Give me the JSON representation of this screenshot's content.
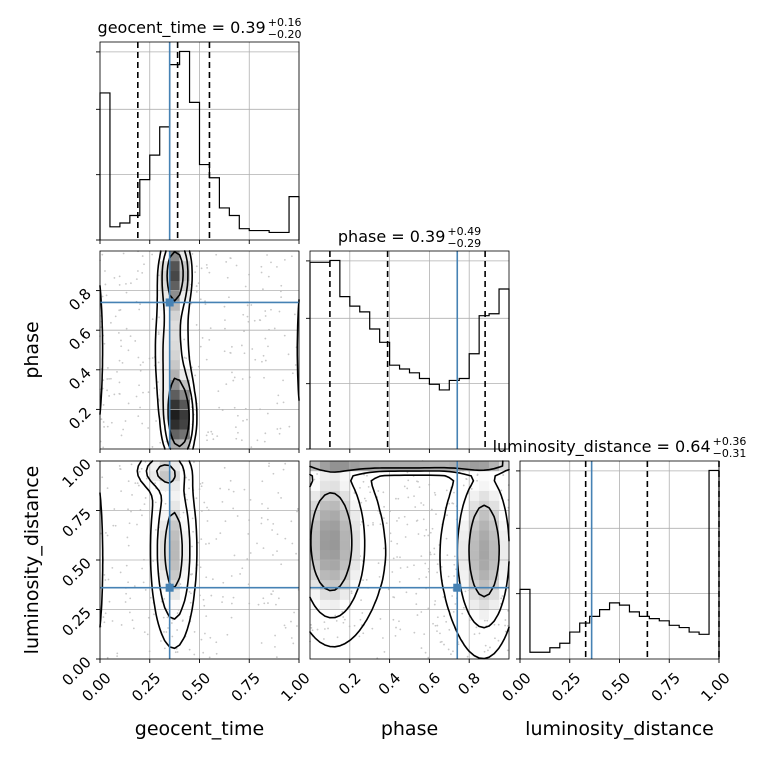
{
  "chart_data": {
    "type": "corner",
    "parameters": [
      "geocent_time",
      "phase",
      "luminosity_distance"
    ],
    "axis_labels": [
      "geocent_time",
      "phase",
      "luminosity_distance"
    ],
    "ranges": [
      [
        0.0,
        1.0
      ],
      [
        0.0,
        1.0
      ],
      [
        0.0,
        1.0
      ]
    ],
    "injection": [
      0.35,
      0.74,
      0.36
    ],
    "quantile_lines": [
      [
        0.19,
        0.39,
        0.55
      ],
      [
        0.1,
        0.39,
        0.88
      ],
      [
        0.33,
        0.64,
        1.0
      ]
    ],
    "titles": [
      {
        "name": "geocent_time",
        "median": "0.39",
        "plus": "+0.16",
        "minus": "−0.20"
      },
      {
        "name": "phase",
        "median": "0.39",
        "plus": "+0.49",
        "minus": "−0.29"
      },
      {
        "name": "luminosity_distance",
        "median": "0.64",
        "plus": "+0.36",
        "minus": "−0.31"
      }
    ],
    "histograms": [
      {
        "param": "geocent_time",
        "bins": [
          0,
          0.05,
          0.1,
          0.15,
          0.2,
          0.25,
          0.3,
          0.35,
          0.4,
          0.45,
          0.5,
          0.55,
          0.6,
          0.65,
          0.7,
          0.75,
          0.8,
          0.85,
          0.9,
          0.95,
          1.0
        ],
        "counts": [
          0.78,
          0.07,
          0.09,
          0.13,
          0.32,
          0.45,
          0.6,
          0.93,
          1.0,
          0.73,
          0.4,
          0.33,
          0.17,
          0.13,
          0.06,
          0.05,
          0.05,
          0.04,
          0.04,
          0.23
        ]
      },
      {
        "param": "phase",
        "bins": [
          0,
          0.05,
          0.1,
          0.15,
          0.2,
          0.25,
          0.3,
          0.35,
          0.4,
          0.45,
          0.5,
          0.55,
          0.6,
          0.65,
          0.7,
          0.75,
          0.8,
          0.85,
          0.9,
          0.95,
          1.0
        ],
        "counts": [
          0.98,
          0.98,
          0.99,
          0.8,
          0.75,
          0.72,
          0.63,
          0.56,
          0.44,
          0.42,
          0.4,
          0.37,
          0.34,
          0.31,
          0.36,
          0.37,
          0.5,
          0.7,
          0.71,
          0.84
        ]
      },
      {
        "param": "luminosity_distance",
        "bins": [
          0,
          0.05,
          0.1,
          0.15,
          0.2,
          0.25,
          0.3,
          0.35,
          0.4,
          0.45,
          0.5,
          0.55,
          0.6,
          0.65,
          0.7,
          0.75,
          0.8,
          0.85,
          0.9,
          0.95,
          1.0
        ],
        "counts": [
          0.31,
          0.03,
          0.03,
          0.05,
          0.07,
          0.12,
          0.16,
          0.19,
          0.22,
          0.25,
          0.24,
          0.21,
          0.19,
          0.18,
          0.17,
          0.15,
          0.14,
          0.12,
          0.11,
          0.84
        ]
      }
    ],
    "panels_2d": [
      {
        "x": "geocent_time",
        "y": "phase",
        "density": "concentrated near geocent_time 0.30-0.45 across all phase, plus bands at phase 0.0 and 1.0"
      },
      {
        "x": "geocent_time",
        "y": "luminosity_distance",
        "density": "concentrated near geocent_time 0.25-0.50 across luminosity_distance"
      },
      {
        "x": "phase",
        "y": "luminosity_distance",
        "density": "concentrated at phase < 0.3 and phase > 0.7, rising toward luminosity_distance 1.0"
      }
    ],
    "ticks": {
      "geocent_time": [
        "0.00",
        "0.25",
        "0.50",
        "0.75",
        "1.00"
      ],
      "phase": [
        "0.2",
        "0.4",
        "0.6",
        "0.8"
      ],
      "luminosity_distance": [
        "0.00",
        "0.25",
        "0.50",
        "0.75",
        "1.00"
      ]
    },
    "grid": true,
    "colors": {
      "injection": "#4682b4",
      "contour": "#000000",
      "hist": "#000000"
    }
  }
}
